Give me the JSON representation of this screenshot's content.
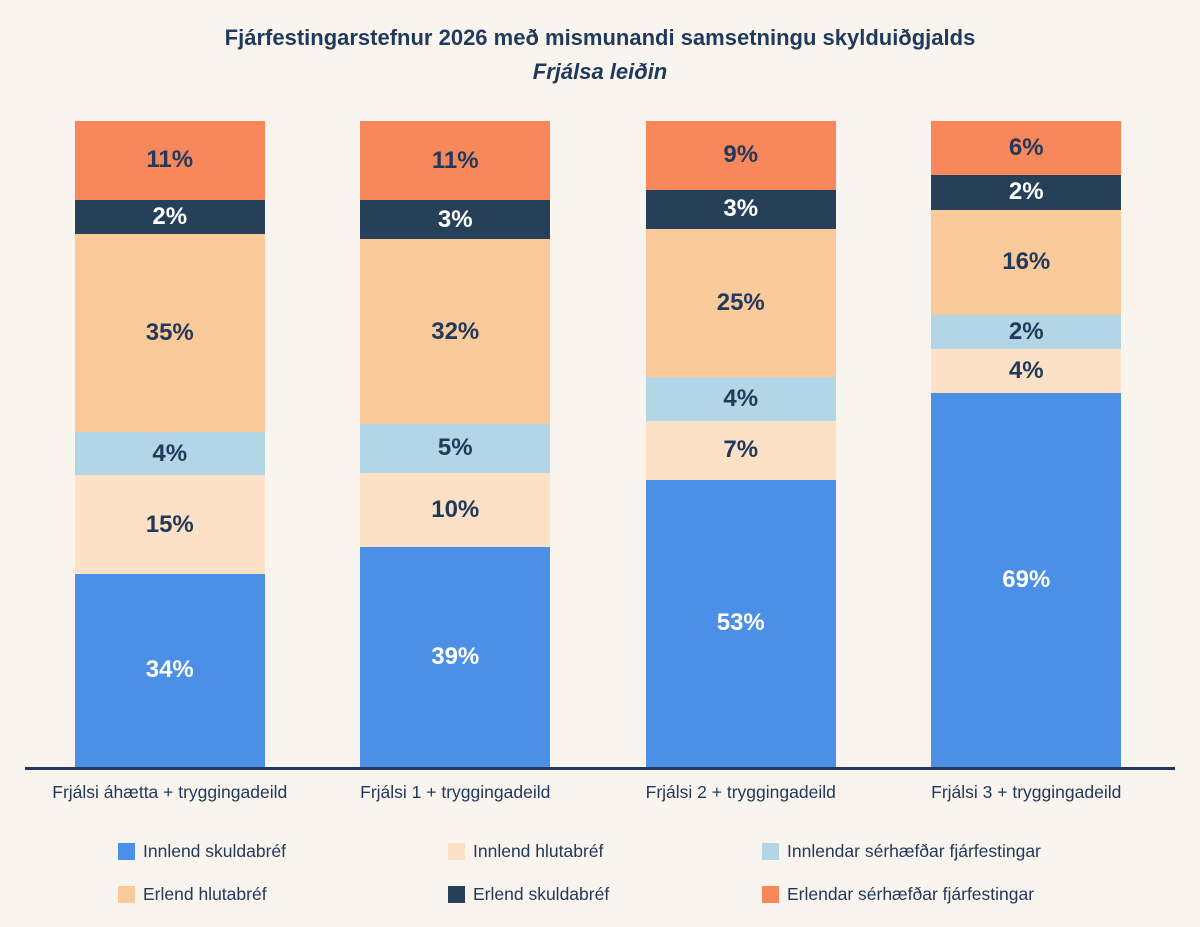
{
  "title": "Fjárfestingarstefnur 2026 með mismunandi samsetningu skylduiðgjalds",
  "subtitle": "Frjálsa leiðin",
  "colors": {
    "background": "#FAF4EF",
    "text": "#21395A",
    "axis": "#21395A"
  },
  "chart_data": {
    "type": "bar",
    "stacked": true,
    "normalized_to_100pct": true,
    "title": "Fjárfestingarstefnur 2026 með mismunandi samsetningu skylduiðgjalds",
    "subtitle": "Frjálsa leiðin",
    "value_suffix": "%",
    "grid": false,
    "legend_position": "bottom",
    "categories": [
      "Frjálsi áhætta + tryggingadeild",
      "Frjálsi 1 + tryggingadeild",
      "Frjálsi 2 + tryggingadeild",
      "Frjálsi 3 + tryggingadeild"
    ],
    "series": [
      {
        "name": "Innlend skuldabréf",
        "color": "#4B8FE6",
        "label_color": "#FFFFFF",
        "values": [
          34,
          39,
          53,
          69
        ]
      },
      {
        "name": "Innlend hlutabréf",
        "color": "#FCE1C6",
        "label_color": "#21395A",
        "values": [
          15,
          10,
          7,
          4
        ]
      },
      {
        "name": "Innlendar sérhæfðar fjárfestingar",
        "color": "#B2D6E5",
        "label_color": "#21395A",
        "values": [
          4,
          5,
          4,
          2
        ]
      },
      {
        "name": "Erlend hlutabréf",
        "color": "#FBCA9B",
        "label_color": "#21395A",
        "values": [
          35,
          32,
          25,
          16
        ]
      },
      {
        "name": "Erlend skuldabréf",
        "color": "#26405A",
        "label_color": "#FFFFFF",
        "values": [
          2,
          3,
          3,
          2
        ]
      },
      {
        "name": "Erlendar sérhæfðar fjárfestingar",
        "color": "#F8885C",
        "label_color": "#21395A",
        "values": [
          11,
          11,
          9,
          6
        ]
      }
    ]
  }
}
